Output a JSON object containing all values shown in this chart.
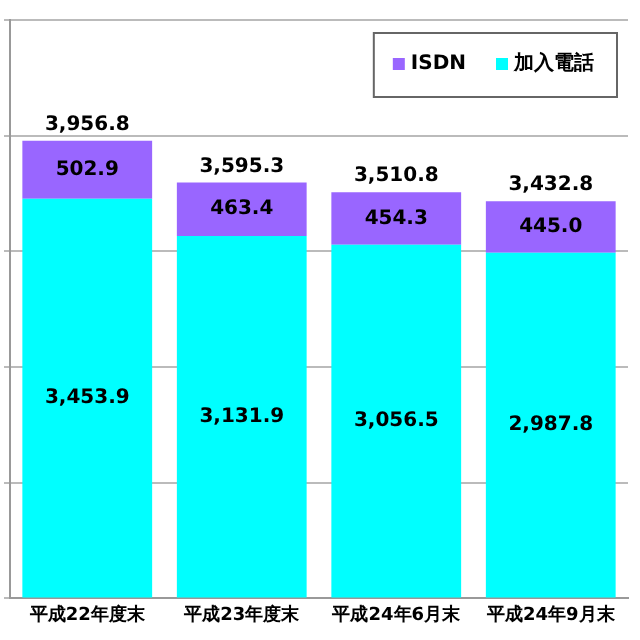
{
  "chart_data": {
    "type": "bar",
    "stacked": true,
    "categories": [
      "平成22年度末",
      "平成23年度末",
      "平成24年6月末",
      "平成24年9月末"
    ],
    "series": [
      {
        "name": "加入電話",
        "color": "#00ffff",
        "values": [
          3453.9,
          3131.9,
          3056.5,
          2987.8
        ],
        "value_labels": [
          "3,453.9",
          "3,131.9",
          "3,056.5",
          "2,987.8"
        ]
      },
      {
        "name": "ISDN",
        "color": "#9966ff",
        "values": [
          502.9,
          463.4,
          454.3,
          445.0
        ],
        "value_labels": [
          "502.9",
          "463.4",
          "454.3",
          "445.0"
        ]
      }
    ],
    "totals": [
      "3,956.8",
      "3,595.3",
      "3,510.8",
      "3,432.8"
    ],
    "tick_labels": "x",
    "grid": "y",
    "legend": "top right"
  }
}
